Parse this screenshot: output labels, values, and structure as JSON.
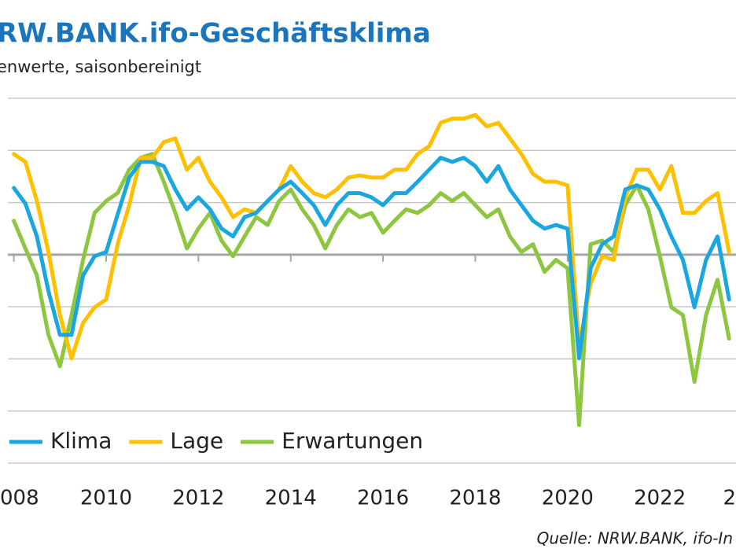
{
  "chart_data": {
    "type": "line",
    "title": "RW.BANK.ifo-Geschäftsklima",
    "subtitle": "enwerte, saisonbereinigt",
    "source": "Quelle: NRW.BANK, ifo-In",
    "x": [
      2008.0,
      2008.25,
      2008.5,
      2008.75,
      2009.0,
      2009.25,
      2009.5,
      2009.75,
      2010.0,
      2010.25,
      2010.5,
      2010.75,
      2011.0,
      2011.25,
      2011.5,
      2011.75,
      2012.0,
      2012.25,
      2012.5,
      2012.75,
      2013.0,
      2013.25,
      2013.5,
      2013.75,
      2014.0,
      2014.25,
      2014.5,
      2014.75,
      2015.0,
      2015.25,
      2015.5,
      2015.75,
      2016.0,
      2016.25,
      2016.5,
      2016.75,
      2017.0,
      2017.25,
      2017.5,
      2017.75,
      2018.0,
      2018.25,
      2018.5,
      2018.75,
      2019.0,
      2019.25,
      2019.5,
      2019.75,
      2020.0,
      2020.25,
      2020.5,
      2020.75,
      2021.0,
      2021.25,
      2021.5,
      2021.75,
      2022.0,
      2022.25,
      2022.5,
      2022.75,
      2023.0,
      2023.25,
      2023.5
    ],
    "series": [
      {
        "name": "Klima",
        "color": "#1aa7e0",
        "values": [
          12.8,
          9.8,
          3.5,
          -7,
          -15.4,
          -15.4,
          -4,
          -0.3,
          0.5,
          7.7,
          14.8,
          17.8,
          17.8,
          17,
          12.5,
          8.7,
          11,
          8.7,
          5,
          3.5,
          7.2,
          8,
          10.3,
          12.5,
          14,
          11.8,
          9.5,
          5.7,
          9.5,
          11.8,
          11.8,
          11,
          9.5,
          11.8,
          11.8,
          14,
          16.3,
          18.6,
          17.8,
          18.6,
          17,
          14,
          17,
          12.5,
          9.5,
          6.5,
          5,
          5.7,
          5,
          -19.9,
          -2.6,
          2,
          3.5,
          12.5,
          13.3,
          12.5,
          8.7,
          3.5,
          -1,
          -10.1,
          -1,
          3.5,
          -8.6
        ]
      },
      {
        "name": "Lage",
        "color": "#ffc000",
        "values": [
          19.3,
          17.8,
          10.3,
          0.5,
          -11.6,
          -19.9,
          -13.1,
          -10.1,
          -8.6,
          2,
          9.5,
          18.6,
          18.6,
          21.6,
          22.3,
          16.3,
          18.6,
          14,
          11,
          7.2,
          8.7,
          8,
          10.3,
          12.5,
          17,
          14,
          11.8,
          11,
          12.5,
          14.8,
          15.2,
          14.8,
          14.8,
          16.3,
          16.3,
          19.3,
          20.8,
          25.3,
          26.1,
          26.1,
          26.8,
          24.6,
          25.3,
          22.3,
          19.3,
          15.5,
          14,
          14,
          13.3,
          -17.6,
          -5.6,
          -0.3,
          -1,
          11,
          16.3,
          16.3,
          12.5,
          17,
          8,
          8,
          10.3,
          11.8,
          0.5
        ]
      },
      {
        "name": "Erwartungen",
        "color": "#8dc63f",
        "values": [
          6.5,
          1.2,
          -4,
          -15.4,
          -21.4,
          -11.6,
          -1,
          8,
          10.3,
          11.8,
          16.3,
          18.6,
          19.3,
          14,
          8,
          1.2,
          5,
          8,
          2.7,
          -0.3,
          3.5,
          7.2,
          5.7,
          10.3,
          12.5,
          8.7,
          5.7,
          1.2,
          5.7,
          8.7,
          7.2,
          8,
          4.2,
          6.5,
          8.7,
          8,
          9.5,
          11.8,
          10.3,
          11.8,
          9.5,
          7.2,
          8.7,
          3.5,
          0.5,
          2,
          -3.3,
          -1,
          -2.6,
          -32.7,
          2,
          2.7,
          0.5,
          9.5,
          13.3,
          8.7,
          -0.3,
          -10.1,
          -11.6,
          -24.4,
          -11.6,
          -4.8,
          -16.1
        ]
      }
    ],
    "xlim": [
      2007.7,
      2023.65
    ],
    "xticks": [
      {
        "value": 2008,
        "label": "008"
      },
      2010,
      2012,
      2014,
      2016,
      2018,
      2020,
      2022,
      {
        "value": 2024,
        "label": "2"
      }
    ],
    "ylim": [
      -40,
      30
    ],
    "yticks": [
      -40,
      -30,
      -20,
      -10,
      0,
      10,
      20,
      30
    ],
    "grid": true
  }
}
